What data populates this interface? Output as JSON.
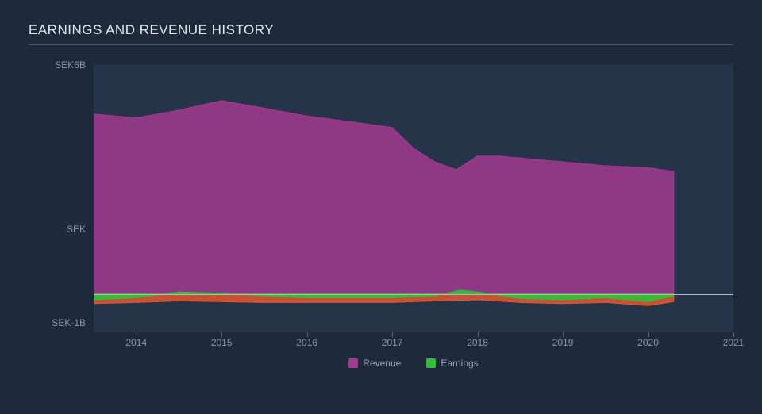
{
  "chart": {
    "title": "EARNINGS AND REVENUE HISTORY",
    "type": "area",
    "background_color": "#1e2a3a",
    "plot_background_color": "#26344a",
    "title_color": "#e0e6ec",
    "title_fontsize": 17,
    "label_color": "#8a96a4",
    "label_fontsize": 12,
    "zero_line_color": "#b0b8c2",
    "title_rule_color": "#4a5866",
    "y_axis": {
      "top_label": "SEK6B",
      "mid_label": "SEK",
      "bottom_label": "SEK-1B",
      "min": -1,
      "max": 6
    },
    "x_axis": {
      "min": 2013.5,
      "max": 2021,
      "ticks": [
        2014,
        2015,
        2016,
        2017,
        2018,
        2019,
        2020,
        2021
      ]
    },
    "series": [
      {
        "name": "Revenue",
        "color": "#a23b8f",
        "fill_opacity": 0.85,
        "points": [
          [
            2013.5,
            4.7
          ],
          [
            2014.0,
            4.6
          ],
          [
            2014.5,
            4.8
          ],
          [
            2015.0,
            5.05
          ],
          [
            2015.5,
            4.85
          ],
          [
            2016.0,
            4.65
          ],
          [
            2016.5,
            4.5
          ],
          [
            2017.0,
            4.35
          ],
          [
            2017.25,
            3.8
          ],
          [
            2017.5,
            3.45
          ],
          [
            2017.75,
            3.25
          ],
          [
            2018.0,
            3.6
          ],
          [
            2018.25,
            3.6
          ],
          [
            2018.5,
            3.55
          ],
          [
            2019.0,
            3.45
          ],
          [
            2019.5,
            3.35
          ],
          [
            2020.0,
            3.3
          ],
          [
            2020.3,
            3.2
          ]
        ]
      },
      {
        "name": "Earnings",
        "color": "#2fbf3a",
        "fill_opacity": 0.9,
        "points": [
          [
            2013.5,
            -0.15
          ],
          [
            2014.0,
            -0.1
          ],
          [
            2014.5,
            0.05
          ],
          [
            2015.0,
            0.02
          ],
          [
            2015.5,
            -0.05
          ],
          [
            2016.0,
            -0.1
          ],
          [
            2016.5,
            -0.1
          ],
          [
            2017.0,
            -0.1
          ],
          [
            2017.5,
            -0.05
          ],
          [
            2017.8,
            0.1
          ],
          [
            2018.0,
            0.05
          ],
          [
            2018.5,
            -0.12
          ],
          [
            2019.0,
            -0.15
          ],
          [
            2019.5,
            -0.1
          ],
          [
            2020.0,
            -0.2
          ],
          [
            2020.3,
            -0.05
          ]
        ]
      },
      {
        "name": "_loss_band",
        "legend": false,
        "color": "#e4572e",
        "fill_opacity": 0.85,
        "points": [
          [
            2013.5,
            -0.25
          ],
          [
            2014.0,
            -0.22
          ],
          [
            2014.5,
            -0.18
          ],
          [
            2015.0,
            -0.2
          ],
          [
            2015.5,
            -0.22
          ],
          [
            2016.0,
            -0.22
          ],
          [
            2016.5,
            -0.22
          ],
          [
            2017.0,
            -0.22
          ],
          [
            2017.5,
            -0.18
          ],
          [
            2018.0,
            -0.15
          ],
          [
            2018.5,
            -0.22
          ],
          [
            2019.0,
            -0.25
          ],
          [
            2019.5,
            -0.22
          ],
          [
            2020.0,
            -0.3
          ],
          [
            2020.3,
            -0.2
          ]
        ]
      }
    ],
    "legend": {
      "items": [
        {
          "label": "Revenue",
          "color": "#a23b8f"
        },
        {
          "label": "Earnings",
          "color": "#2fbf3a"
        }
      ]
    }
  }
}
